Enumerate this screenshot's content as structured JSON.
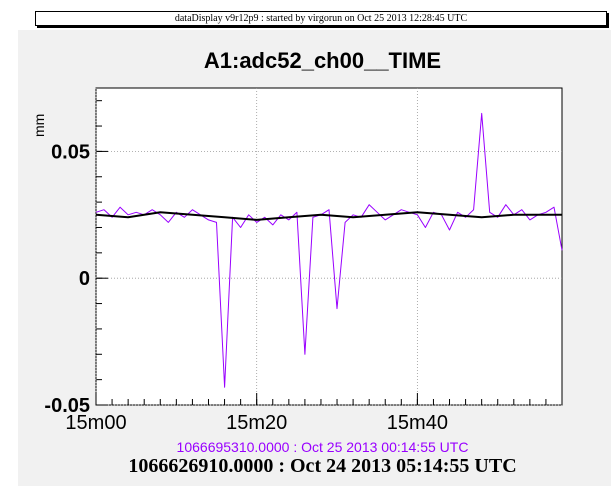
{
  "header": {
    "banner": "dataDisplay v9r12p9 : started by virgorun on Oct 25 2013 12:28:45 UTC"
  },
  "chart_data": {
    "type": "line",
    "title": "A1:adc52_ch00__TIME",
    "xlabel": "",
    "ylabel": "mm",
    "xlim": [
      0,
      58
    ],
    "ylim": [
      -0.05,
      0.075
    ],
    "x_unit": "minutes",
    "grid": true,
    "y_ticks": [
      {
        "value": 0.05,
        "label": "0.05"
      },
      {
        "value": 0,
        "label": "0"
      },
      {
        "value": -0.05,
        "label": "-0.05"
      }
    ],
    "x_ticks": [
      {
        "value": 0,
        "label": "15m00"
      },
      {
        "value": 20,
        "label": "15m20"
      },
      {
        "value": 40,
        "label": "15m40"
      }
    ],
    "series": [
      {
        "color": "#9900ff",
        "role": "raw",
        "x": [
          0,
          1,
          2,
          3,
          4,
          5,
          6,
          7,
          8,
          9,
          10,
          11,
          12,
          13,
          14,
          15,
          16,
          17,
          18,
          19,
          20,
          21,
          22,
          23,
          24,
          25,
          26,
          27,
          28,
          29,
          30,
          31,
          32,
          33,
          34,
          35,
          36,
          37,
          38,
          39,
          40,
          41,
          42,
          43,
          44,
          45,
          46,
          47,
          48,
          49,
          50,
          51,
          52,
          53,
          54,
          55,
          56,
          57,
          58
        ],
        "y": [
          0.026,
          0.027,
          0.024,
          0.028,
          0.025,
          0.026,
          0.025,
          0.027,
          0.025,
          0.022,
          0.026,
          0.024,
          0.027,
          0.025,
          0.023,
          0.022,
          -0.043,
          0.024,
          0.02,
          0.025,
          0.022,
          0.024,
          0.021,
          0.025,
          0.023,
          0.026,
          -0.03,
          0.024,
          0.025,
          0.027,
          -0.012,
          0.022,
          0.025,
          0.024,
          0.029,
          0.026,
          0.023,
          0.025,
          0.027,
          0.026,
          0.025,
          0.02,
          0.026,
          0.025,
          0.019,
          0.026,
          0.024,
          0.027,
          0.065,
          0.026,
          0.024,
          0.029,
          0.025,
          0.027,
          0.023,
          0.025,
          0.026,
          0.028,
          0.011
        ]
      },
      {
        "color": "#000000",
        "role": "average",
        "x": [
          0,
          4,
          8,
          12,
          16,
          20,
          24,
          28,
          32,
          36,
          40,
          44,
          48,
          52,
          56,
          58
        ],
        "y": [
          0.025,
          0.024,
          0.026,
          0.025,
          0.024,
          0.023,
          0.024,
          0.025,
          0.024,
          0.025,
          0.026,
          0.025,
          0.024,
          0.025,
          0.025,
          0.025
        ]
      }
    ]
  },
  "footer": {
    "time_purple": "1066695310.0000 : Oct 25 2013 00:14:55 UTC",
    "time_black": "1066626910.0000 : Oct 24 2013 05:14:55 UTC"
  }
}
